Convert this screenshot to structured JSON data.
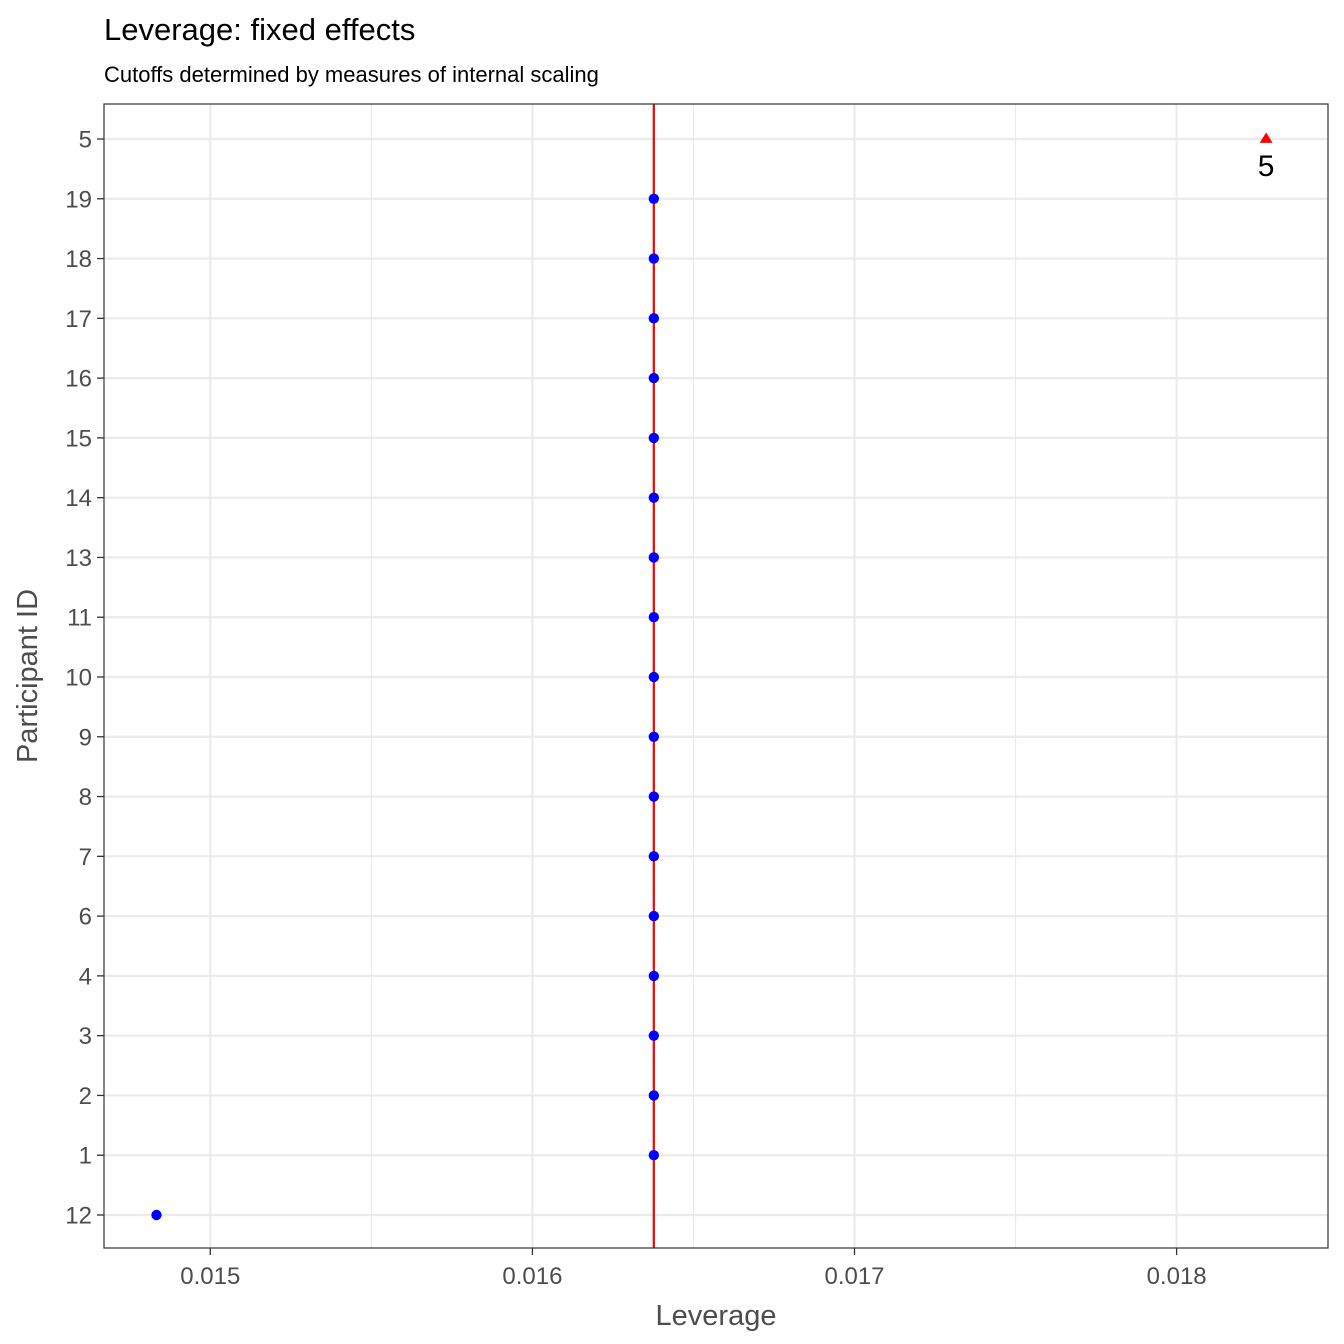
{
  "chart_data": {
    "type": "scatter",
    "title": "Leverage: fixed effects",
    "subtitle": "Cutoffs determined by measures of internal scaling",
    "xlabel": "Leverage",
    "ylabel": "Participant ID",
    "xlim": [
      0.01467,
      0.01847
    ],
    "x_ticks": [
      0.015,
      0.016,
      0.017,
      0.018
    ],
    "x_tick_labels": [
      "0.015",
      "0.016",
      "0.017",
      "0.018"
    ],
    "categories": [
      "12",
      "1",
      "2",
      "3",
      "4",
      "6",
      "7",
      "8",
      "9",
      "10",
      "11",
      "13",
      "14",
      "15",
      "16",
      "17",
      "18",
      "19",
      "5"
    ],
    "cutoff": {
      "x": 0.016377,
      "color": "#ff0000"
    },
    "grid": true,
    "points": [
      {
        "id": "12",
        "x": 0.014833,
        "shape": "circle",
        "color": "#0000ff"
      },
      {
        "id": "1",
        "x": 0.016377,
        "shape": "circle",
        "color": "#0000ff"
      },
      {
        "id": "2",
        "x": 0.016377,
        "shape": "circle",
        "color": "#0000ff"
      },
      {
        "id": "3",
        "x": 0.016377,
        "shape": "circle",
        "color": "#0000ff"
      },
      {
        "id": "4",
        "x": 0.016377,
        "shape": "circle",
        "color": "#0000ff"
      },
      {
        "id": "6",
        "x": 0.016377,
        "shape": "circle",
        "color": "#0000ff"
      },
      {
        "id": "7",
        "x": 0.016377,
        "shape": "circle",
        "color": "#0000ff"
      },
      {
        "id": "8",
        "x": 0.016377,
        "shape": "circle",
        "color": "#0000ff"
      },
      {
        "id": "9",
        "x": 0.016377,
        "shape": "circle",
        "color": "#0000ff"
      },
      {
        "id": "10",
        "x": 0.016377,
        "shape": "circle",
        "color": "#0000ff"
      },
      {
        "id": "11",
        "x": 0.016377,
        "shape": "circle",
        "color": "#0000ff"
      },
      {
        "id": "13",
        "x": 0.016377,
        "shape": "circle",
        "color": "#0000ff"
      },
      {
        "id": "14",
        "x": 0.016377,
        "shape": "circle",
        "color": "#0000ff"
      },
      {
        "id": "15",
        "x": 0.016377,
        "shape": "circle",
        "color": "#0000ff"
      },
      {
        "id": "16",
        "x": 0.016377,
        "shape": "circle",
        "color": "#0000ff"
      },
      {
        "id": "17",
        "x": 0.016377,
        "shape": "circle",
        "color": "#0000ff"
      },
      {
        "id": "18",
        "x": 0.016377,
        "shape": "circle",
        "color": "#0000ff"
      },
      {
        "id": "19",
        "x": 0.016377,
        "shape": "circle",
        "color": "#0000ff"
      },
      {
        "id": "5",
        "x": 0.018278,
        "shape": "triangle",
        "color": "#ff0000",
        "label": "5"
      }
    ]
  }
}
